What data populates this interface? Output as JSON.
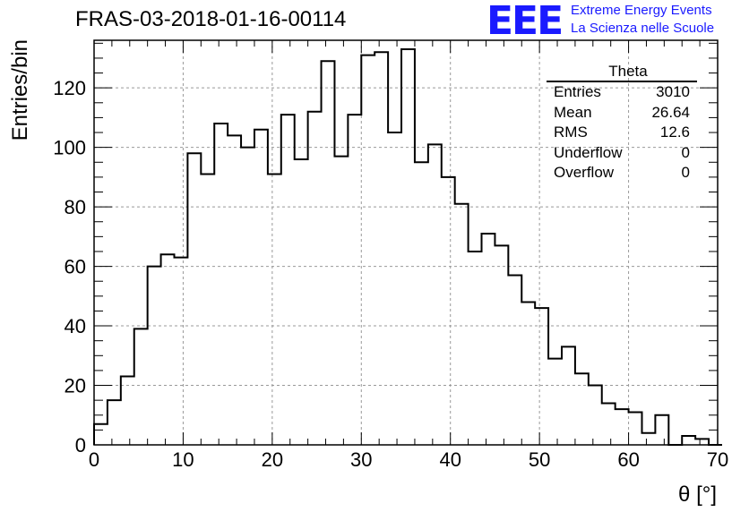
{
  "title": "FRAS-03-2018-01-16-00114",
  "logo": {
    "mark": "EEE",
    "line1": "Extreme Energy Events",
    "line2": "La Scienza nelle Scuole",
    "color": "#1a1aff"
  },
  "stats_box": {
    "title": "Theta",
    "rows": [
      {
        "label": "Entries",
        "value": "3010"
      },
      {
        "label": "Mean",
        "value": "26.64"
      },
      {
        "label": "RMS",
        "value": "12.6"
      },
      {
        "label": "Underflow",
        "value": "0"
      },
      {
        "label": "Overflow",
        "value": "0"
      }
    ]
  },
  "chart_data": {
    "type": "bar",
    "style": "step-histogram",
    "title": "FRAS-03-2018-01-16-00114",
    "xlabel": "θ [°]",
    "ylabel": "Entries/bin",
    "xlim": [
      0,
      70
    ],
    "ylim": [
      0,
      136
    ],
    "xticks": [
      0,
      10,
      20,
      30,
      40,
      50,
      60,
      70
    ],
    "yticks": [
      0,
      20,
      40,
      60,
      80,
      100,
      120
    ],
    "grid": true,
    "bin_width": 1.5,
    "bin_edges_start": 0,
    "values": [
      7,
      15,
      23,
      39,
      60,
      64,
      63,
      98,
      91,
      108,
      104,
      100,
      106,
      91,
      111,
      96,
      112,
      129,
      97,
      111,
      131,
      132,
      105,
      133,
      95,
      101,
      90,
      81,
      65,
      71,
      67,
      57,
      48,
      46,
      29,
      33,
      24,
      20,
      14,
      12,
      11,
      4,
      10,
      0,
      3,
      2,
      0
    ]
  }
}
